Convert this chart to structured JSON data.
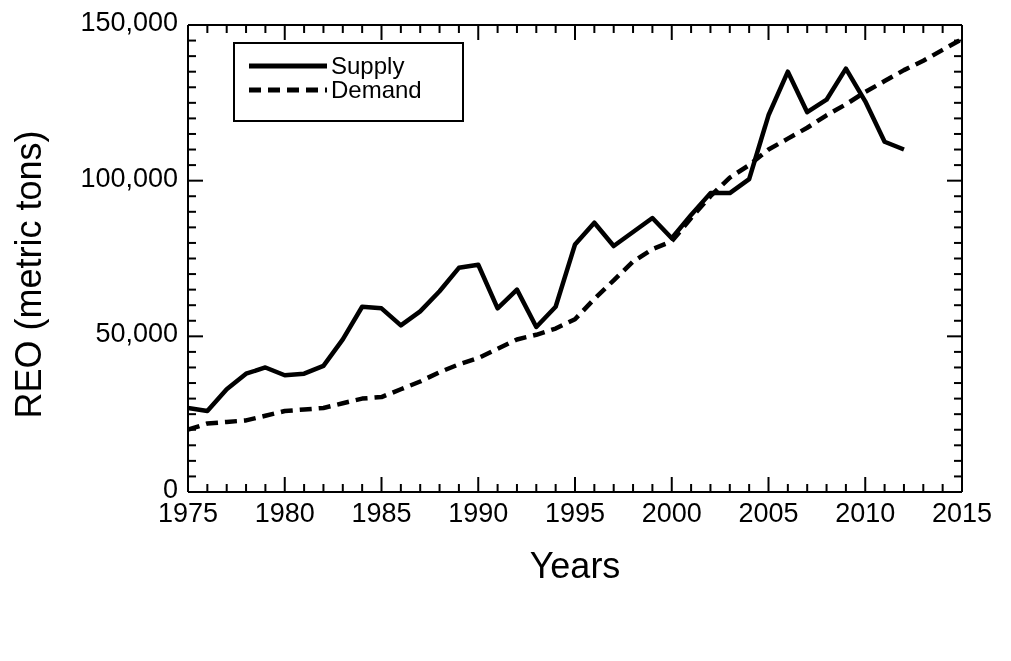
{
  "chart_data": {
    "type": "line",
    "xlabel": "Years",
    "ylabel": "REO (metric tons)",
    "x": [
      1975,
      1976,
      1977,
      1978,
      1979,
      1980,
      1981,
      1982,
      1983,
      1984,
      1985,
      1986,
      1987,
      1988,
      1989,
      1990,
      1991,
      1992,
      1993,
      1994,
      1995,
      1996,
      1997,
      1998,
      1999,
      2000,
      2001,
      2002,
      2003,
      2004,
      2005,
      2006,
      2007,
      2008,
      2009,
      2010,
      2011,
      2012,
      2013,
      2014,
      2015
    ],
    "series": [
      {
        "name": "Supply",
        "color": "#000000",
        "line_style": "solid",
        "values": [
          27000,
          26000,
          33000,
          38000,
          40000,
          37500,
          38000,
          40500,
          49000,
          59500,
          59000,
          53500,
          58000,
          64500,
          72000,
          73000,
          59000,
          65000,
          53000,
          59500,
          79500,
          86500,
          79000,
          83500,
          88000,
          81500,
          89000,
          96000,
          96000,
          100500,
          121000,
          135000,
          122000,
          126000,
          136000,
          125500,
          112500,
          110000,
          null,
          null,
          null
        ]
      },
      {
        "name": "Demand",
        "color": "#000000",
        "line_style": "dashed",
        "values": [
          20000,
          22000,
          22500,
          23000,
          24500,
          26000,
          26500,
          27000,
          28500,
          30000,
          30500,
          33000,
          35500,
          38500,
          41000,
          43000,
          46000,
          49000,
          50500,
          52500,
          55500,
          62000,
          68000,
          74000,
          78000,
          80500,
          88000,
          95000,
          101000,
          105000,
          110000,
          113500,
          117000,
          121000,
          124500,
          128500,
          132000,
          135500,
          138500,
          142000,
          145500
        ]
      }
    ],
    "xlim": [
      1975,
      2015
    ],
    "xticks": [
      1975,
      {
        "value": 1976,
        "label": null
      },
      {
        "value": 1977,
        "label": null
      },
      {
        "value": 1978,
        "label": null
      },
      {
        "value": 1979,
        "label": null
      },
      1980,
      {
        "value": 1981,
        "label": null
      },
      {
        "value": 1982,
        "label": null
      },
      {
        "value": 1983,
        "label": null
      },
      {
        "value": 1984,
        "label": null
      },
      1985,
      {
        "value": 1986,
        "label": null
      },
      {
        "value": 1987,
        "label": null
      },
      {
        "value": 1988,
        "label": null
      },
      {
        "value": 1989,
        "label": null
      },
      1990,
      {
        "value": 1991,
        "label": null
      },
      {
        "value": 1992,
        "label": null
      },
      {
        "value": 1993,
        "label": null
      },
      {
        "value": 1994,
        "label": null
      },
      1995,
      {
        "value": 1996,
        "label": null
      },
      {
        "value": 1997,
        "label": null
      },
      {
        "value": 1998,
        "label": null
      },
      {
        "value": 1999,
        "label": null
      },
      2000,
      {
        "value": 2001,
        "label": null
      },
      {
        "value": 2002,
        "label": null
      },
      {
        "value": 2003,
        "label": null
      },
      {
        "value": 2004,
        "label": null
      },
      2005,
      {
        "value": 2006,
        "label": null
      },
      {
        "value": 2007,
        "label": null
      },
      {
        "value": 2008,
        "label": null
      },
      {
        "value": 2009,
        "label": null
      },
      2010,
      {
        "value": 2011,
        "label": null
      },
      {
        "value": 2012,
        "label": null
      },
      {
        "value": 2013,
        "label": null
      },
      {
        "value": 2014,
        "label": null
      },
      2015
    ],
    "ylim": [
      0,
      150000
    ],
    "yticks": [
      {
        "value": 0,
        "label": "0"
      },
      {
        "value": 5000,
        "label": null
      },
      {
        "value": 10000,
        "label": null
      },
      {
        "value": 15000,
        "label": null
      },
      {
        "value": 20000,
        "label": null
      },
      {
        "value": 25000,
        "label": null
      },
      {
        "value": 30000,
        "label": null
      },
      {
        "value": 35000,
        "label": null
      },
      {
        "value": 40000,
        "label": null
      },
      {
        "value": 45000,
        "label": null
      },
      {
        "value": 50000,
        "label": "50,000"
      },
      {
        "value": 55000,
        "label": null
      },
      {
        "value": 60000,
        "label": null
      },
      {
        "value": 65000,
        "label": null
      },
      {
        "value": 70000,
        "label": null
      },
      {
        "value": 75000,
        "label": null
      },
      {
        "value": 80000,
        "label": null
      },
      {
        "value": 85000,
        "label": null
      },
      {
        "value": 90000,
        "label": null
      },
      {
        "value": 95000,
        "label": null
      },
      {
        "value": 100000,
        "label": "100,000"
      },
      {
        "value": 105000,
        "label": null
      },
      {
        "value": 110000,
        "label": null
      },
      {
        "value": 115000,
        "label": null
      },
      {
        "value": 120000,
        "label": null
      },
      {
        "value": 125000,
        "label": null
      },
      {
        "value": 130000,
        "label": null
      },
      {
        "value": 135000,
        "label": null
      },
      {
        "value": 140000,
        "label": null
      },
      {
        "value": 145000,
        "label": null
      },
      {
        "value": 150000,
        "label": "150,000"
      }
    ],
    "grid": false,
    "legend": "top left",
    "marker": "none"
  }
}
